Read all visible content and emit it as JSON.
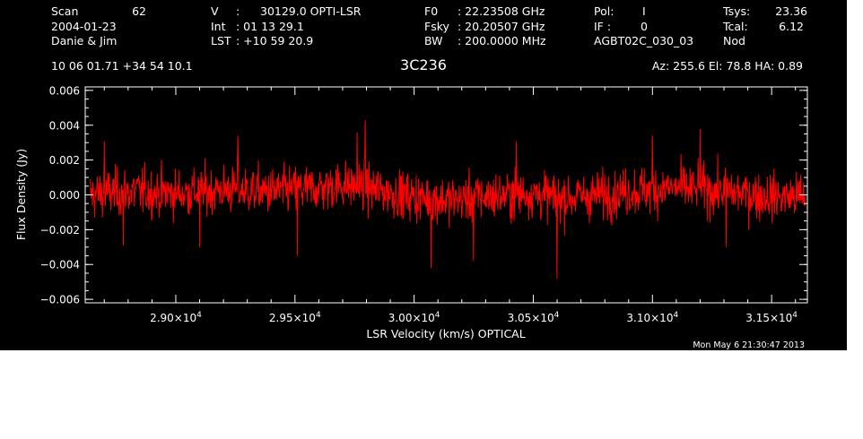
{
  "header": {
    "scan_label": "Scan",
    "scan_number": "62",
    "date": "2004-01-23",
    "observers": "Danie & Jim",
    "velocity_label": "V",
    "velocity_colon": ":",
    "velocity_value": "30129.0 OPTI-LSR",
    "int_label": "Int",
    "int_value": ":  01 13 29.1",
    "lst_label": "LST",
    "lst_value": ": +10 59 20.9",
    "f0_label": "F0",
    "f0_value": ":  22.23508 GHz",
    "fsky_label": "Fsky",
    "fsky_value": ":  20.20507 GHz",
    "bw_label": "BW",
    "bw_value": ": 200.0000 MHz",
    "pol_label": "Pol:",
    "pol_value": "I",
    "if_label": "IF :",
    "if_value": "0",
    "project": "AGBT02C_030_03",
    "tsys_label": "Tsys:",
    "tsys_value": "23.36",
    "tcal_label": "Tcal:",
    "tcal_value": "6.12",
    "mode": "Nod",
    "coords": "10 06 01.71  +34 54 10.1",
    "source": "3C236",
    "az_el_ha": "Az: 255.6  El:  78.8  HA:  0.89",
    "timestamp": "Mon May  6 21:30:47 2013"
  },
  "chart_data": {
    "type": "line",
    "title": "3C236",
    "xlabel": "LSR Velocity (km/s) OPTICAL",
    "ylabel": "Flux Density (Jy)",
    "xlim": [
      28620,
      31650
    ],
    "ylim": [
      -0.0062,
      0.0062
    ],
    "x_ticks": [
      29000,
      29500,
      30000,
      30500,
      31000,
      31500
    ],
    "x_tick_labels": [
      {
        "mantissa": "2.90",
        "exponent": "4"
      },
      {
        "mantissa": "2.95",
        "exponent": "4"
      },
      {
        "mantissa": "3.00",
        "exponent": "4"
      },
      {
        "mantissa": "3.05",
        "exponent": "4"
      },
      {
        "mantissa": "3.10",
        "exponent": "4"
      },
      {
        "mantissa": "3.15",
        "exponent": "4"
      }
    ],
    "y_ticks": [
      -0.006,
      -0.004,
      -0.002,
      0.0,
      0.002,
      0.004,
      0.006
    ],
    "y_tick_labels": [
      "−0.006",
      "−0.004",
      "−0.002",
      "0.000",
      "0.002",
      "0.004",
      "0.006"
    ],
    "series": [
      {
        "color": "#ff0000",
        "x_start": 28640,
        "x_end": 31640,
        "rms": 0.0011,
        "baseline": [
          [
            28640,
            0.0
          ],
          [
            28800,
            0.0002
          ],
          [
            29000,
            0.0001
          ],
          [
            29200,
            0.0003
          ],
          [
            29400,
            0.0002
          ],
          [
            29600,
            0.0004
          ],
          [
            29700,
            0.0006
          ],
          [
            29800,
            0.0004
          ],
          [
            29950,
            0.0
          ],
          [
            30050,
            -0.0002
          ],
          [
            30150,
            -0.0003
          ],
          [
            30300,
            -0.0001
          ],
          [
            30500,
            0.0001
          ],
          [
            30600,
            -0.0002
          ],
          [
            30700,
            -0.0001
          ],
          [
            30900,
            0.0002
          ],
          [
            31100,
            0.0004
          ],
          [
            31300,
            0.0002
          ],
          [
            31500,
            -0.0001
          ],
          [
            31640,
            -0.0001
          ]
        ],
        "extremes": [
          [
            29795,
            0.0043
          ],
          [
            29760,
            0.0036
          ],
          [
            29260,
            0.0034
          ],
          [
            28700,
            0.0031
          ],
          [
            31200,
            0.0038
          ],
          [
            31000,
            0.0034
          ],
          [
            30430,
            0.0031
          ],
          [
            30070,
            -0.0042
          ],
          [
            30600,
            -0.0048
          ],
          [
            30250,
            -0.0038
          ],
          [
            29100,
            -0.003
          ],
          [
            29510,
            -0.0035
          ],
          [
            31310,
            -0.003
          ],
          [
            28780,
            -0.0029
          ]
        ]
      }
    ],
    "grid": false,
    "legend": "none"
  }
}
